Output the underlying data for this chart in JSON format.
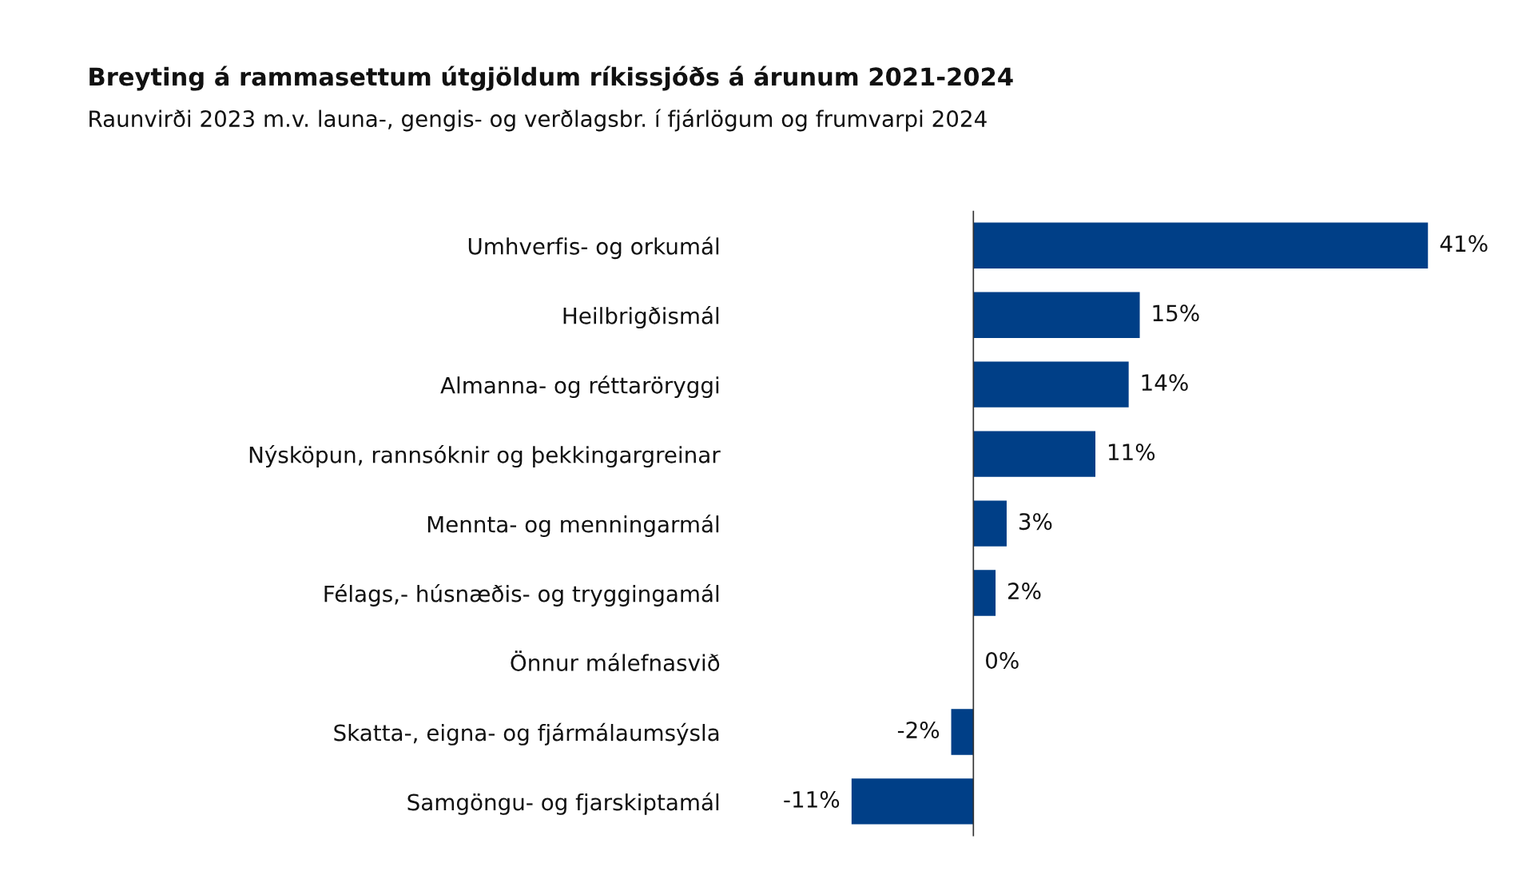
{
  "chart_data": {
    "type": "bar",
    "orientation": "horizontal",
    "title": "Breyting á rammasettum útgjöldum ríkissjóðs á árunum 2021-2024",
    "subtitle": "Raunvirði 2023 m.v. launa-, gengis- og verðlagsbr. í fjárlögum og frumvarpi 2024",
    "categories": [
      "Umhverfis- og orkumál",
      "Heilbrigðismál",
      "Almanna- og réttaröryggi",
      "Nýsköpun, rannsóknir og þekkingargreinar",
      "Mennta- og menningarmál",
      "Félags,- húsnæðis- og tryggingamál",
      "Önnur málefnasvið",
      "Skatta-, eigna- og fjármálaumsýsla",
      "Samgöngu- og fjarskiptamál"
    ],
    "values": [
      41,
      15,
      14,
      11,
      3,
      2,
      0,
      -2,
      -11
    ],
    "value_labels": [
      "41%",
      "15%",
      "14%",
      "11%",
      "3%",
      "2%",
      "0%",
      "-2%",
      "-11%"
    ],
    "color": "#003f87",
    "ref_lines": [
      {
        "axis": "x",
        "value": 0,
        "color": "#333333"
      }
    ],
    "grid": false,
    "legend": false
  }
}
